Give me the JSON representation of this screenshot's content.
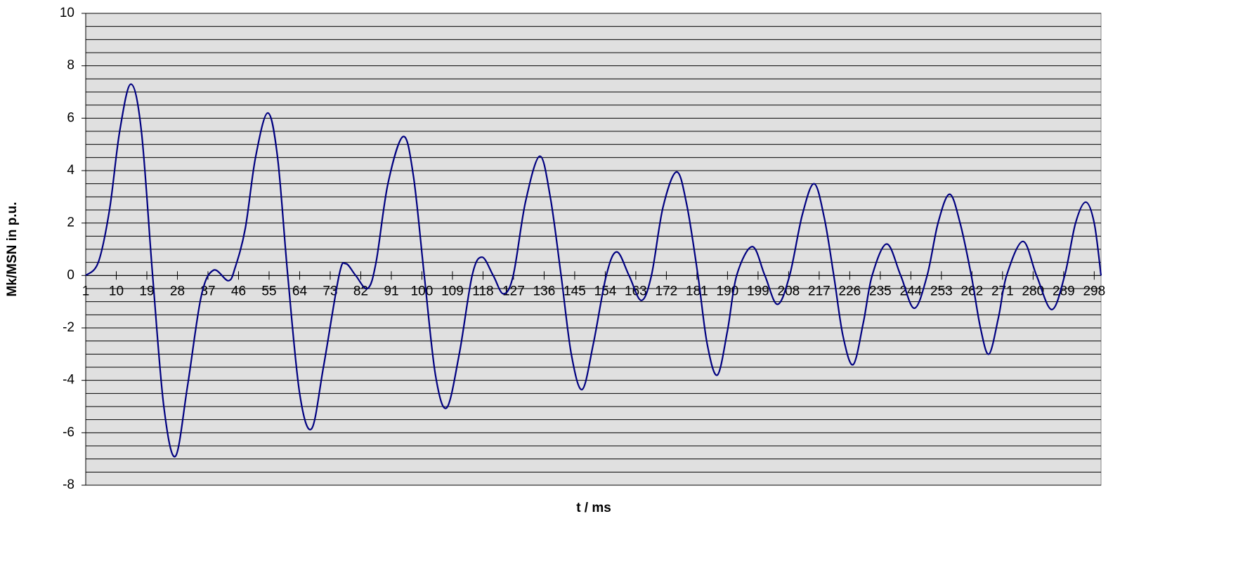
{
  "chart_data": {
    "type": "line",
    "y_label": "Mk/MSN in p.u.",
    "x_label": "t / ms",
    "color": "#000080",
    "x": [
      1,
      4.7,
      8,
      11,
      14.3,
      17.4,
      20.7,
      24,
      27.4,
      31,
      35,
      38.6,
      43,
      45,
      48,
      51,
      54.6,
      57.5,
      60.5,
      64,
      67.5,
      71,
      75.6,
      77.6,
      80.5,
      84,
      86.5,
      90,
      94.5,
      97.5,
      100.7,
      104,
      107.3,
      111,
      114.8,
      117.7,
      121,
      124,
      126.9,
      130.5,
      134.7,
      137.8,
      141,
      144,
      147.2,
      150.5,
      154.3,
      157.4,
      161,
      164.6,
      167.6,
      171,
      175,
      178,
      181.3,
      184,
      187,
      190,
      192.7,
      197.3,
      201,
      204.7,
      208.3,
      212,
      215.5,
      218.5,
      221.3,
      224,
      227,
      230,
      232.6,
      236.9,
      241,
      245,
      248.8,
      252,
      255.4,
      258.5,
      261.8,
      264.5,
      267,
      269.8,
      272.2,
      277,
      281,
      285.5,
      289.3,
      292.5,
      295.5,
      298,
      300
    ],
    "values": [
      0,
      0.5,
      2.5,
      5.5,
      7.3,
      5.5,
      0,
      -5,
      -6.9,
      -4.2,
      -0.8,
      0.2,
      -0.2,
      0.3,
      1.8,
      4.5,
      6.2,
      4.5,
      0,
      -4.5,
      -5.85,
      -3.5,
      0,
      0.45,
      0,
      -0.5,
      0.5,
      3.5,
      5.3,
      3.8,
      0,
      -3.8,
      -5.05,
      -3,
      0,
      0.7,
      0,
      -0.7,
      0,
      2.8,
      4.55,
      3,
      0,
      -3,
      -4.35,
      -2.6,
      0,
      0.9,
      0,
      -0.95,
      0,
      2.6,
      3.95,
      2.7,
      0,
      -2.6,
      -3.8,
      -2.1,
      0,
      1.1,
      0,
      -1.1,
      0,
      2.3,
      3.5,
      2.2,
      0,
      -2.3,
      -3.4,
      -1.8,
      0,
      1.2,
      0,
      -1.25,
      0,
      2,
      3.1,
      2,
      0,
      -2,
      -3,
      -1.6,
      0,
      1.3,
      0,
      -1.3,
      0,
      2,
      2.8,
      2,
      0
    ],
    "xlim": [
      1,
      300
    ],
    "xticks": [
      1,
      10,
      19,
      28,
      37,
      46,
      55,
      64,
      73,
      82,
      91,
      100,
      109,
      118,
      127,
      136,
      145,
      154,
      163,
      172,
      181,
      190,
      199,
      208,
      217,
      226,
      235,
      244,
      253,
      262,
      271,
      280,
      289,
      298
    ],
    "ylim": [
      -8,
      10
    ],
    "yticks": [
      -8,
      -6,
      -4,
      -2,
      0,
      2,
      4,
      6,
      8,
      10
    ],
    "yminorticks": [
      -8,
      -7.5,
      -7,
      -6.5,
      -6,
      -5.5,
      -5,
      -4.5,
      -4,
      -3.5,
      -3,
      -2.5,
      -2,
      -1.5,
      -1,
      -0.5,
      0,
      0.5,
      1,
      1.5,
      2,
      2.5,
      3,
      3.5,
      4,
      4.5,
      5,
      5.5,
      6,
      6.5,
      7,
      7.5,
      8,
      8.5,
      9,
      9.5,
      10
    ],
    "grid": true
  }
}
